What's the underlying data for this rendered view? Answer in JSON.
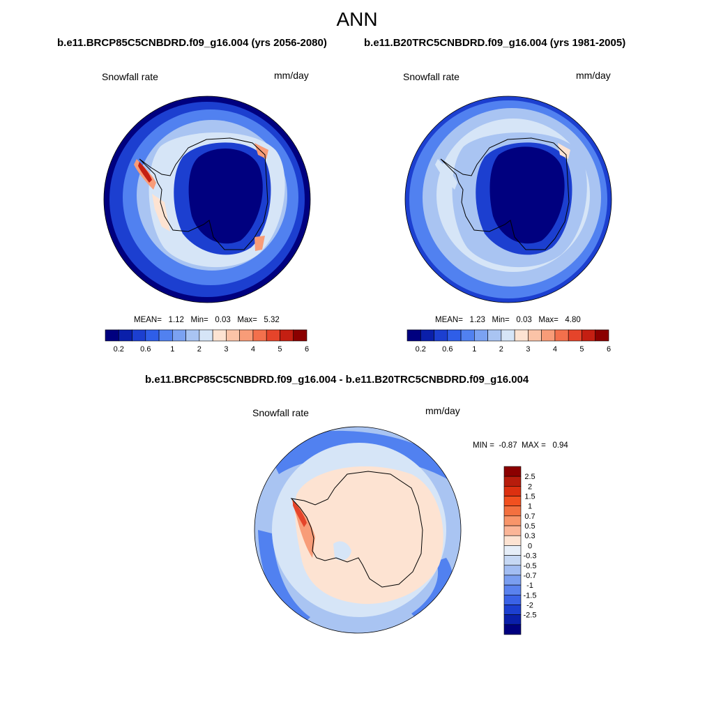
{
  "figure": {
    "title": "ANN",
    "variable_label": "Snowfall rate",
    "units_label": "mm/day"
  },
  "panels": [
    {
      "header": "b.e11.BRCP85C5CNBDRD.f09_g16.004 (yrs 2056-2080)",
      "mean_label": "MEAN=",
      "mean": "1.12",
      "min_label": "Min=",
      "min": "0.03",
      "max_label": "Max=",
      "max": "5.32"
    },
    {
      "header": "b.e11.B20TRC5CNBDRD.f09_g16.004 (yrs 1981-2005)",
      "mean_label": "MEAN=",
      "mean": "1.23",
      "min_label": "Min=",
      "min": "0.03",
      "max_label": "Max=",
      "max": "4.80"
    }
  ],
  "diff_panel": {
    "header": "b.e11.BRCP85C5CNBDRD.f09_g16.004 - b.e11.B20TRC5CNBDRD.f09_g16.004",
    "min_label": "MIN =",
    "min": "-0.87",
    "max_label": "MAX =",
    "max": "0.94"
  },
  "colorbar_main": {
    "colors": [
      "#00007f",
      "#0a1faa",
      "#1c3fd0",
      "#2f5ee8",
      "#5181f0",
      "#7ba2f2",
      "#a9c4f2",
      "#d6e5f7",
      "#fde3d2",
      "#fbc3a7",
      "#f89c78",
      "#f3704c",
      "#e5442a",
      "#c41f12",
      "#8b0000"
    ],
    "tick_labels": [
      "0.2",
      "0.6",
      "1",
      "2",
      "3",
      "4",
      "5",
      "6"
    ]
  },
  "colorbar_diff": {
    "colors": [
      "#8b0000",
      "#b71c0c",
      "#dc3010",
      "#f2501f",
      "#f3703f",
      "#f8956a",
      "#fbb597",
      "#fde3d2",
      "#e6eef8",
      "#c6d8f4",
      "#a2bdf2",
      "#7a9ef0",
      "#5a82ee",
      "#3a62e6",
      "#1c3fd0",
      "#0a1faa",
      "#00007f"
    ],
    "tick_labels": [
      "2.5",
      "2",
      "1.5",
      "1",
      "0.7",
      "0.5",
      "0.3",
      "0",
      "-0.3",
      "-0.5",
      "-0.7",
      "-1",
      "-1.5",
      "-2",
      "-2.5"
    ]
  },
  "map_colors": {
    "deep_blue": "#00007f",
    "dark_blue": "#1c3fd0",
    "mid_blue": "#5181f0",
    "light_blue": "#a9c4f2",
    "pale_blue": "#d6e5f7",
    "peach": "#fde3d2",
    "salmon": "#f89c78",
    "red": "#e5442a",
    "dark_red": "#c41f12"
  }
}
